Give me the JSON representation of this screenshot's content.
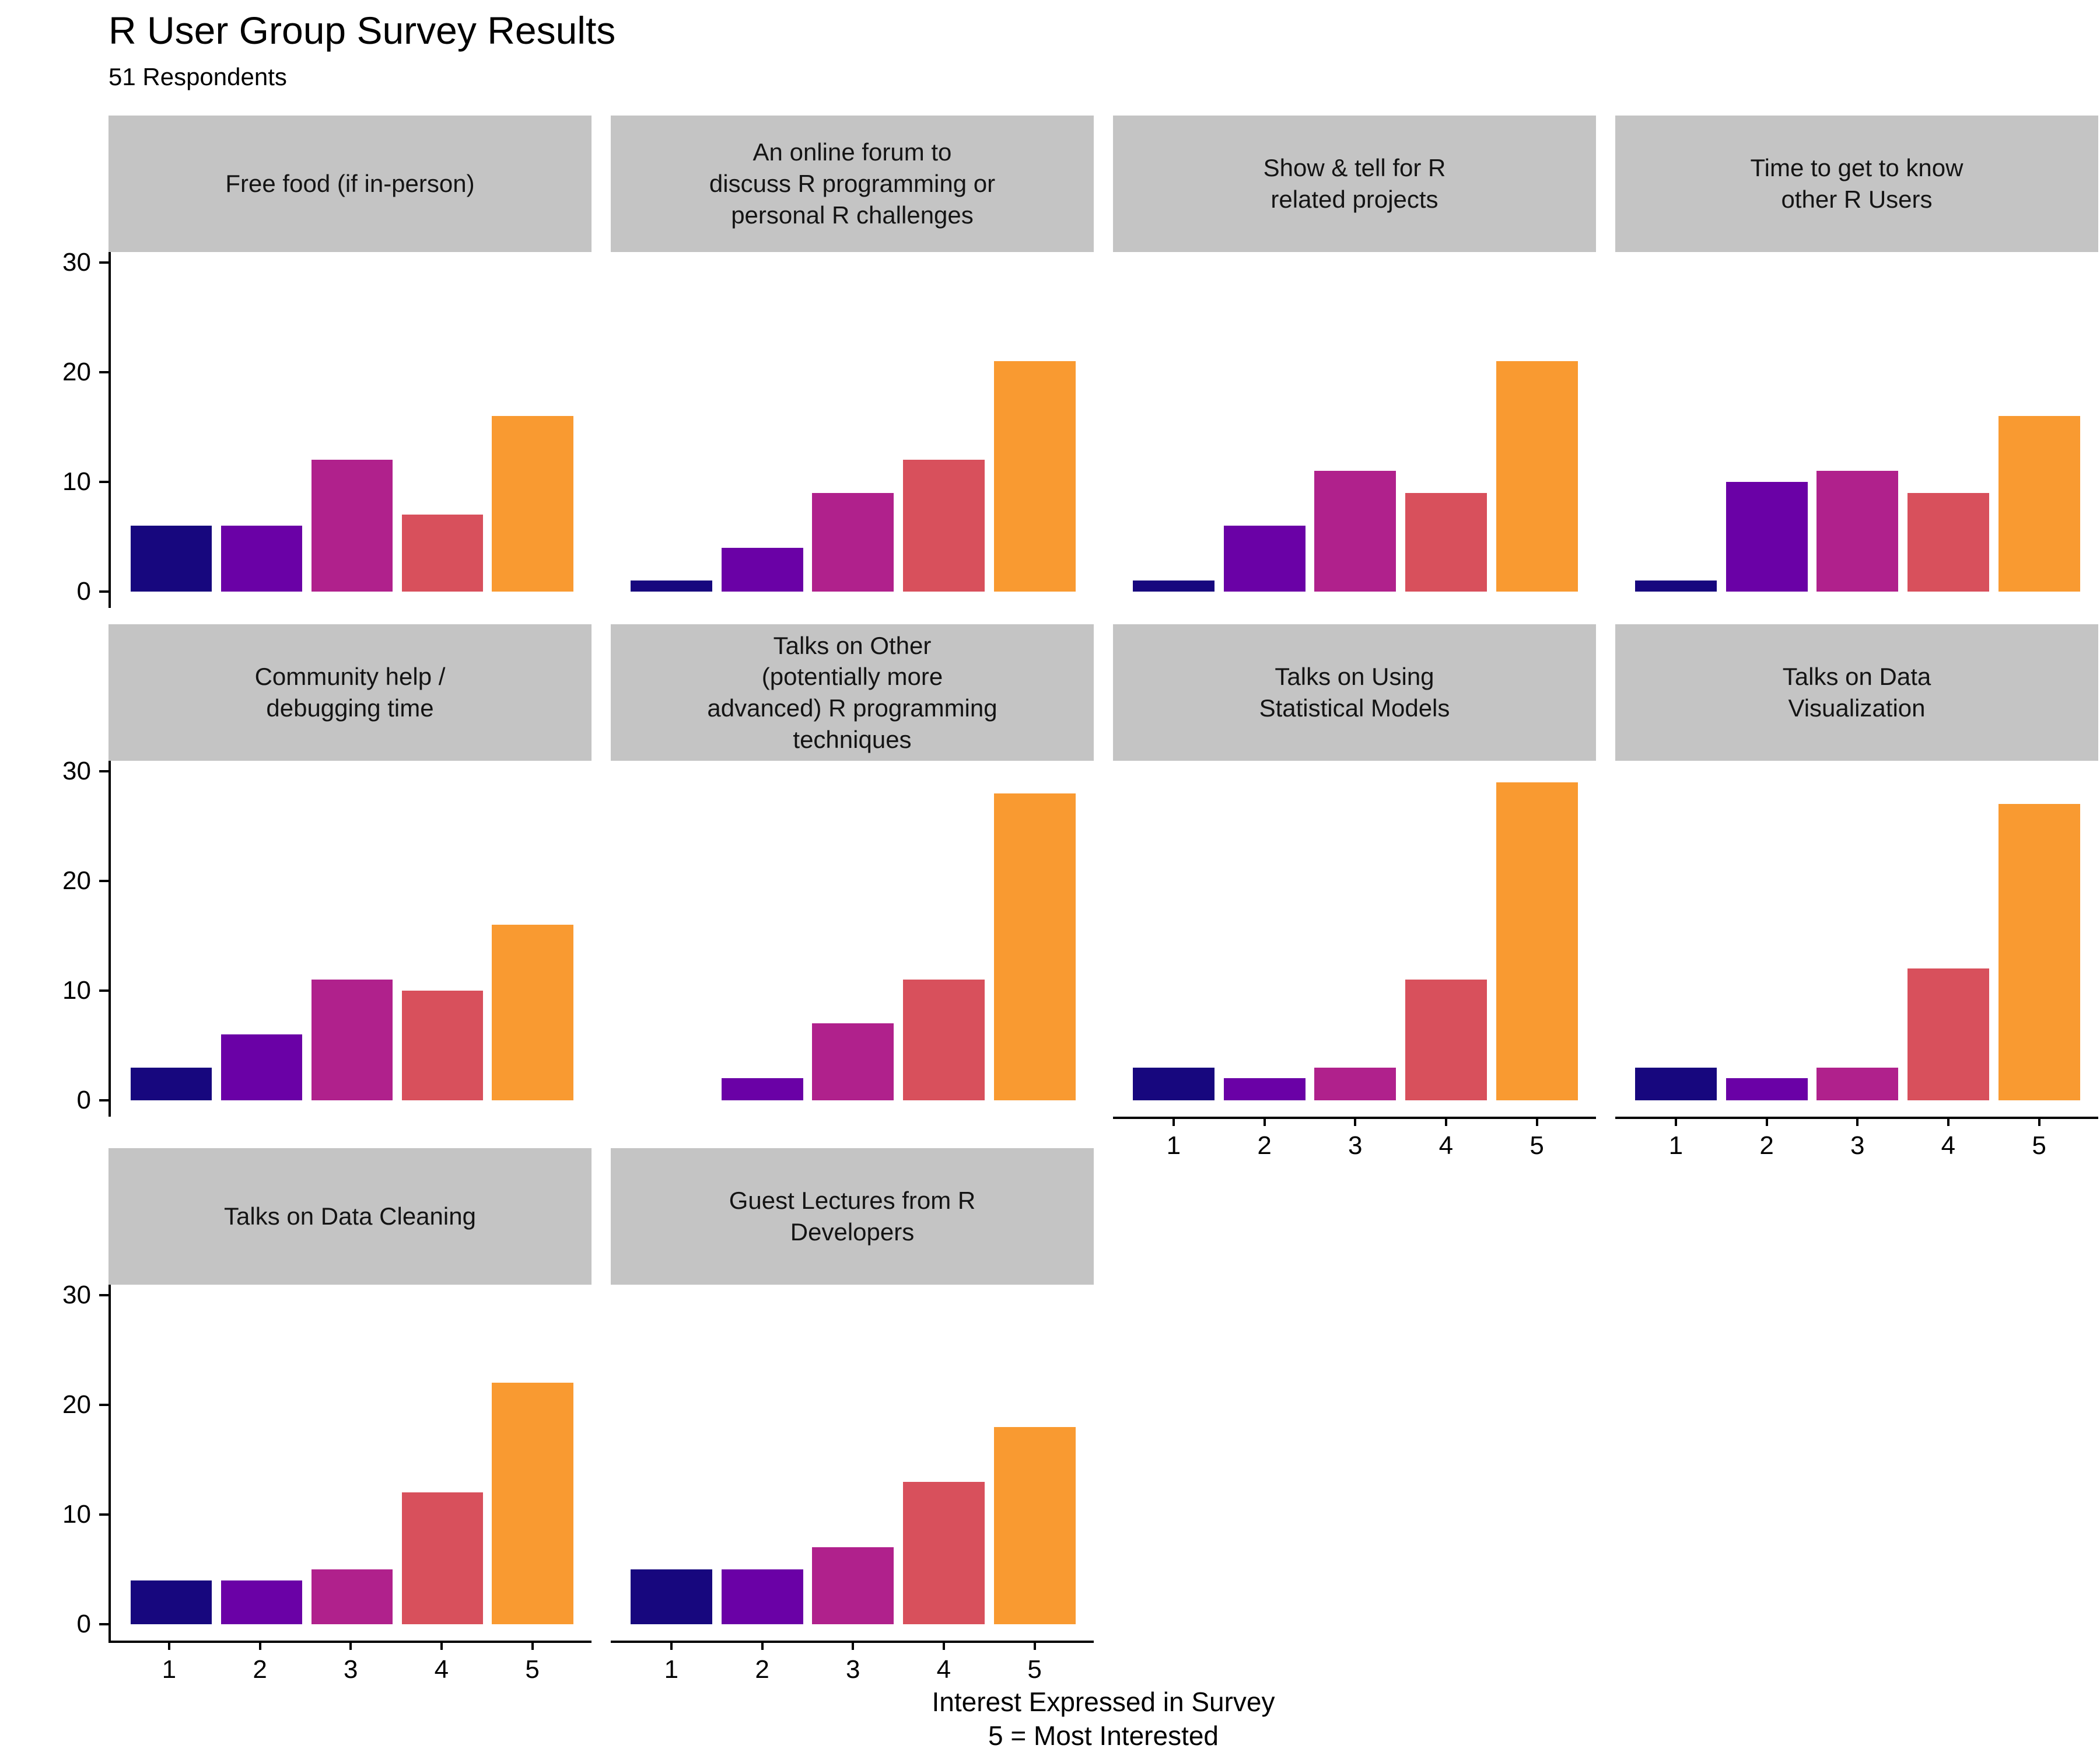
{
  "title": "R User Group Survey Results",
  "subtitle": "51 Respondents",
  "x_axis_title_line1": "Interest Expressed in Survey",
  "x_axis_title_line2": "5 = Most Interested",
  "colors": {
    "bars": [
      "#17077E",
      "#6A01A6",
      "#B0218C",
      "#D8505C",
      "#F99A31"
    ],
    "strip_background": "#C4C4C4",
    "axis": "#000000",
    "background": "#FFFFFF"
  },
  "chart_data": {
    "type": "bar",
    "title": "R User Group Survey Results",
    "subtitle": "51 Respondents",
    "xlabel": "Interest Expressed in Survey (5 = Most Interested)",
    "ylabel": "",
    "categories": [
      "1",
      "2",
      "3",
      "4",
      "5"
    ],
    "y_ticks": [
      0,
      10,
      20,
      30
    ],
    "ylim": [
      0,
      30
    ],
    "grid": false,
    "legend_position": "none",
    "facets": [
      {
        "title": "Free food (if in-person)",
        "title_lines": [
          "Free food (if in-person)"
        ],
        "values": [
          6,
          6,
          12,
          7,
          16
        ]
      },
      {
        "title": "An online forum to discuss R programming or personal R challenges",
        "title_lines": [
          "An online forum to",
          "discuss R programming or",
          "personal R challenges"
        ],
        "values": [
          1,
          4,
          9,
          12,
          21
        ]
      },
      {
        "title": "Show & tell for R related projects",
        "title_lines": [
          "Show & tell for R",
          "related projects"
        ],
        "values": [
          1,
          6,
          11,
          9,
          21
        ]
      },
      {
        "title": "Time to get to know other R Users",
        "title_lines": [
          "Time to get to know",
          "other R Users"
        ],
        "values": [
          1,
          10,
          11,
          9,
          16
        ]
      },
      {
        "title": "Community help / debugging time",
        "title_lines": [
          "Community help /",
          "debugging time"
        ],
        "values": [
          3,
          6,
          11,
          10,
          16
        ]
      },
      {
        "title": "Talks on Other (potentially more advanced) R programming techniques",
        "title_lines": [
          "Talks on Other",
          "(potentially more",
          "advanced) R programming",
          "techniques"
        ],
        "values": [
          0,
          2,
          7,
          11,
          28
        ]
      },
      {
        "title": "Talks on Using Statistical Models",
        "title_lines": [
          "Talks on Using",
          "Statistical Models"
        ],
        "values": [
          3,
          2,
          3,
          11,
          29
        ]
      },
      {
        "title": "Talks on Data Visualization",
        "title_lines": [
          "Talks on Data",
          "Visualization"
        ],
        "values": [
          3,
          2,
          3,
          12,
          27
        ]
      },
      {
        "title": "Talks on Data Cleaning",
        "title_lines": [
          "Talks on Data Cleaning"
        ],
        "values": [
          4,
          4,
          5,
          12,
          22
        ]
      },
      {
        "title": "Guest Lectures from R Developers",
        "title_lines": [
          "Guest Lectures from R",
          "Developers"
        ],
        "values": [
          5,
          5,
          7,
          13,
          18
        ]
      }
    ]
  }
}
